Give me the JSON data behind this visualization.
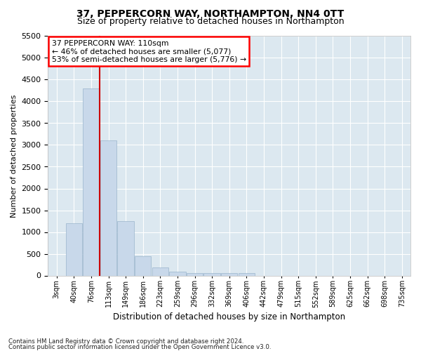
{
  "title": "37, PEPPERCORN WAY, NORTHAMPTON, NN4 0TT",
  "subtitle": "Size of property relative to detached houses in Northampton",
  "xlabel": "Distribution of detached houses by size in Northampton",
  "ylabel": "Number of detached properties",
  "footnote1": "Contains HM Land Registry data © Crown copyright and database right 2024.",
  "footnote2": "Contains public sector information licensed under the Open Government Licence v3.0.",
  "annotation_line1": "37 PEPPERCORN WAY: 110sqm",
  "annotation_line2": "← 46% of detached houses are smaller (5,077)",
  "annotation_line3": "53% of semi-detached houses are larger (5,776) →",
  "bar_color": "#c8d8ea",
  "bar_edge_color": "#9ab4cc",
  "vline_color": "#cc0000",
  "vline_x_idx": 2.5,
  "categories": [
    "3sqm",
    "40sqm",
    "76sqm",
    "113sqm",
    "149sqm",
    "186sqm",
    "223sqm",
    "259sqm",
    "296sqm",
    "332sqm",
    "369sqm",
    "406sqm",
    "442sqm",
    "479sqm",
    "515sqm",
    "552sqm",
    "589sqm",
    "625sqm",
    "662sqm",
    "698sqm",
    "735sqm"
  ],
  "values": [
    0,
    1200,
    4300,
    3100,
    1250,
    450,
    180,
    90,
    60,
    50,
    50,
    50,
    0,
    0,
    0,
    0,
    0,
    0,
    0,
    0,
    0
  ],
  "ylim": [
    0,
    5500
  ],
  "yticks": [
    0,
    500,
    1000,
    1500,
    2000,
    2500,
    3000,
    3500,
    4000,
    4500,
    5000,
    5500
  ],
  "bg_color": "#dce8f0",
  "grid_color": "#ffffff",
  "title_fontsize": 10,
  "subtitle_fontsize": 9
}
